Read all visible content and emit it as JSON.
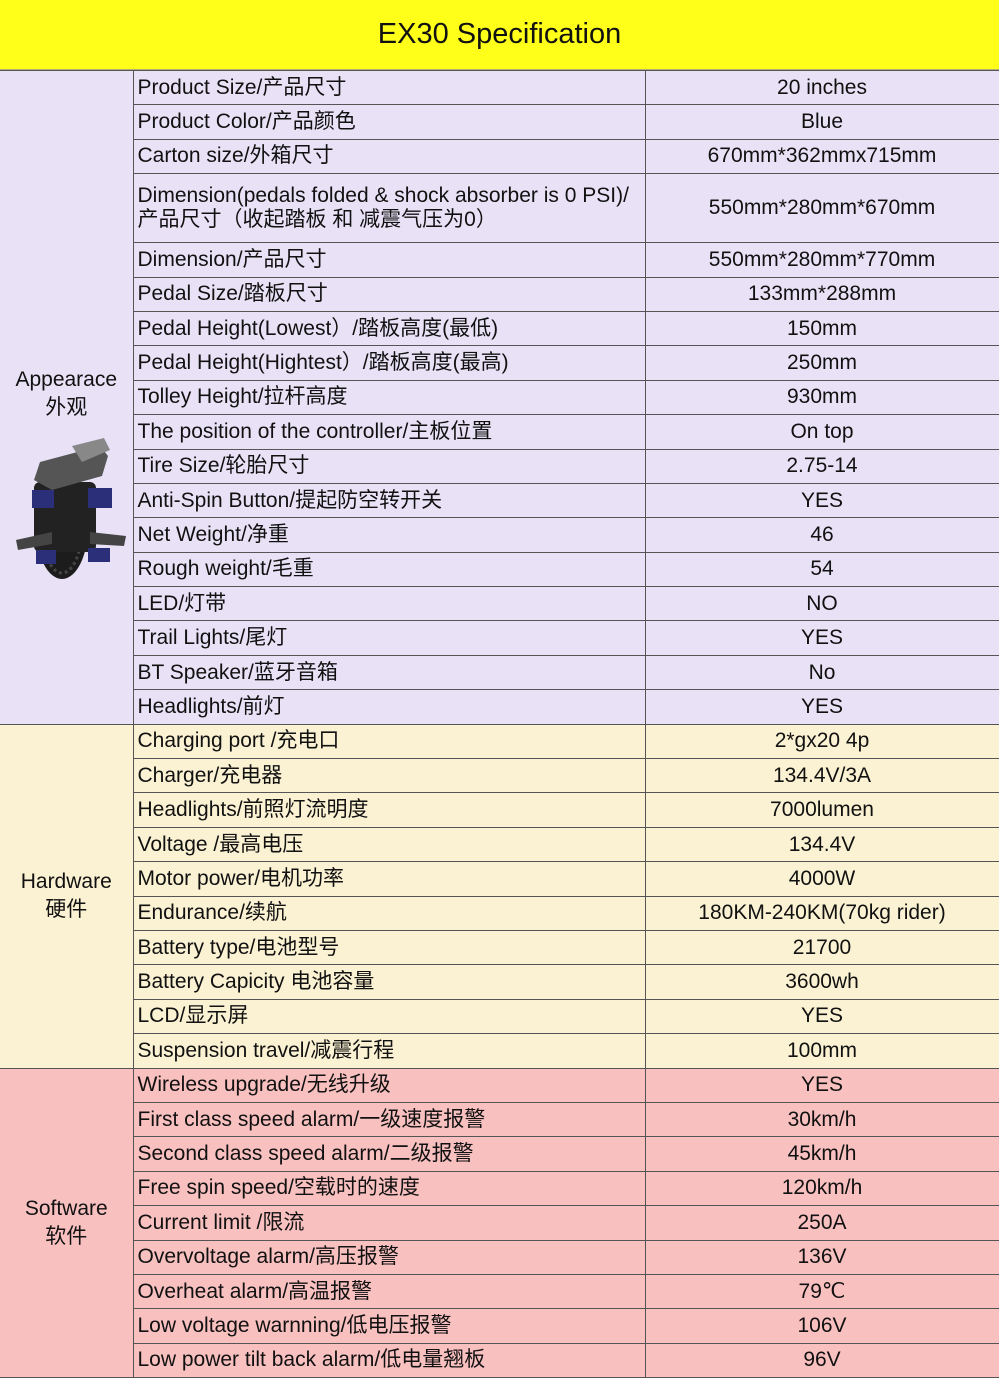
{
  "title": "EX30 Specification",
  "colors": {
    "header": "#ffff1a",
    "appearance": "#e9e2f7",
    "hardware": "#fbf2d3",
    "software": "#f9c0c0"
  },
  "groups": [
    {
      "key": "appearance",
      "label_en": "Appearace",
      "label_cn": "外观",
      "has_image": true,
      "rows": [
        {
          "spec": "Product Size/产品尺寸",
          "value": "20 inches"
        },
        {
          "spec": "Product Color/产品颜色",
          "value": "Blue"
        },
        {
          "spec": "Carton size/外箱尺寸",
          "value": "670mm*362mmx715mm"
        },
        {
          "spec": "Dimension(pedals folded & shock absorber is 0 PSI)/产品尺寸（收起踏板 和 减震气压为0）",
          "value": "550mm*280mm*670mm",
          "double": true
        },
        {
          "spec": "Dimension/产品尺寸",
          "value": "550mm*280mm*770mm"
        },
        {
          "spec": "Pedal Size/踏板尺寸",
          "value": "133mm*288mm"
        },
        {
          "spec": "Pedal Height(Lowest）/踏板高度(最低)",
          "value": "150mm"
        },
        {
          "spec": "Pedal Height(Hightest）/踏板高度(最高)",
          "value": "250mm"
        },
        {
          "spec": "Tolley Height/拉杆高度",
          "value": "930mm"
        },
        {
          "spec": "The position of the controller/主板位置",
          "value": "On top"
        },
        {
          "spec": "Tire Size/轮胎尺寸",
          "value": "2.75-14"
        },
        {
          "spec": "Anti-Spin Button/提起防空转开关",
          "value": "YES"
        },
        {
          "spec": "Net Weight/净重",
          "value": "46"
        },
        {
          "spec": "Rough weight/毛重",
          "value": "54"
        },
        {
          "spec": "LED/灯带",
          "value": "NO"
        },
        {
          "spec": "Trail Lights/尾灯",
          "value": "YES"
        },
        {
          "spec": "BT Speaker/蓝牙音箱",
          "value": "No"
        },
        {
          "spec": "Headlights/前灯",
          "value": "YES"
        }
      ]
    },
    {
      "key": "hardware",
      "label_en": "Hardware",
      "label_cn": "硬件",
      "rows": [
        {
          "spec": "Charging port /充电口",
          "value": "2*gx20 4p"
        },
        {
          "spec": "Charger/充电器",
          "value": "134.4V/3A"
        },
        {
          "spec": "Headlights/前照灯流明度",
          "value": "7000lumen"
        },
        {
          "spec": "Voltage /最高电压",
          "value": "134.4V"
        },
        {
          "spec": "Motor power/电机功率",
          "value": "4000W"
        },
        {
          "spec": "Endurance/续航",
          "value": "180KM-240KM(70kg rider)"
        },
        {
          "spec": "Battery type/电池型号",
          "value": "21700"
        },
        {
          "spec": "Battery Capicity 电池容量",
          "value": "3600wh"
        },
        {
          "spec": "LCD/显示屏",
          "value": "YES"
        },
        {
          "spec": "Suspension travel/减震行程",
          "value": "100mm"
        }
      ]
    },
    {
      "key": "software",
      "label_en": "Software",
      "label_cn": "软件",
      "rows": [
        {
          "spec": "Wireless upgrade/无线升级",
          "value": "YES"
        },
        {
          "spec": "First class speed alarm/一级速度报警",
          "value": "30km/h"
        },
        {
          "spec": "Second class speed alarm/二级报警",
          "value": "45km/h"
        },
        {
          "spec": "Free spin speed/空载时的速度",
          "value": "120km/h"
        },
        {
          "spec": "Current limit /限流",
          "value": "250A"
        },
        {
          "spec": "Overvoltage alarm/高压报警",
          "value": "136V"
        },
        {
          "spec": "Overheat alarm/高温报警",
          "value": "79℃"
        },
        {
          "spec": "Low voltage warnning/低电压报警",
          "value": "106V"
        },
        {
          "spec": "Low power tilt back alarm/低电量翘板",
          "value": "96V"
        }
      ]
    }
  ]
}
